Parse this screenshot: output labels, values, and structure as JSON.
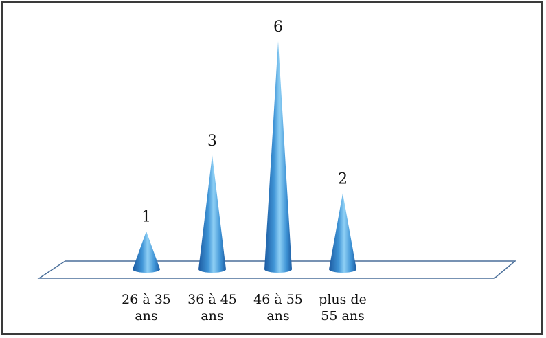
{
  "chart_data": {
    "type": "bar",
    "categories": [
      [
        "26 à 35",
        "ans"
      ],
      [
        "36 à 45",
        "ans"
      ],
      [
        "46 à 55",
        "ans"
      ],
      [
        "plus de",
        "55 ans"
      ]
    ],
    "values": [
      1,
      3,
      6,
      2
    ],
    "data_labels": [
      "1",
      "3",
      "6",
      "2"
    ],
    "title": "",
    "xlabel": "",
    "ylabel": "",
    "ylim": [
      0,
      6
    ],
    "grid": false,
    "legend": "none",
    "mark_shape": "cone",
    "colors": {
      "cone_light": "#8fd0f5",
      "cone_mid": "#3f94d6",
      "cone_dark": "#1c5aa0",
      "floor_stroke": "#4a6f9a"
    }
  }
}
